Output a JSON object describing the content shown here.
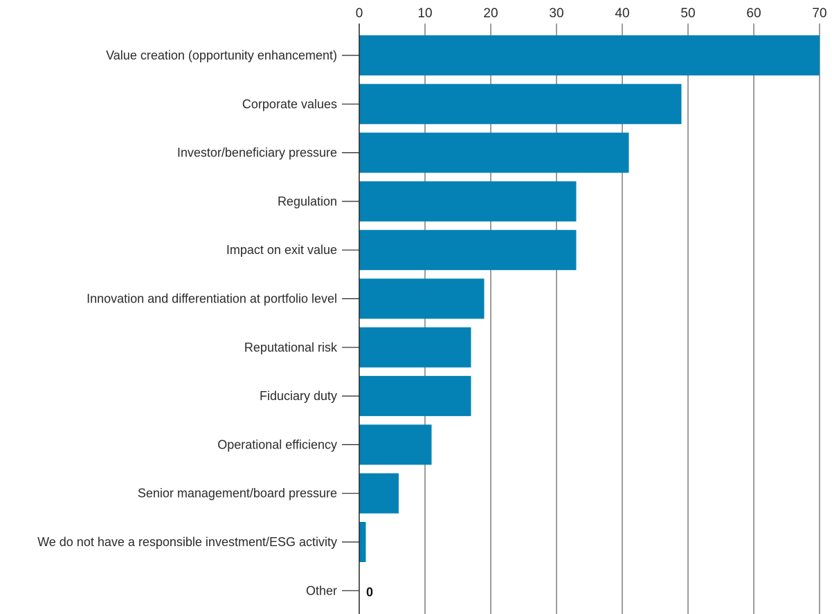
{
  "chart_data": {
    "type": "bar",
    "orientation": "horizontal",
    "title": "",
    "xlabel": "",
    "ylabel": "",
    "xlim": [
      0,
      70
    ],
    "xticks": [
      0,
      10,
      20,
      30,
      40,
      50,
      60,
      70
    ],
    "x_axis_position": "top",
    "grid": true,
    "bar_color": "#0482B5",
    "categories": [
      "Value creation (opportunity enhancement)",
      "Corporate values",
      "Investor/beneficiary pressure",
      "Regulation",
      "Impact on exit value",
      "Innovation and differentiation at portfolio level",
      "Reputational risk",
      "Fiduciary duty",
      "Operational efficiency",
      "Senior management/board pressure",
      "We do not have a responsible investment/ESG activity",
      "Other"
    ],
    "values": [
      70,
      49,
      41,
      33,
      33,
      19,
      17,
      17,
      11,
      6,
      1,
      0
    ],
    "data_labels": [
      {
        "category": "Other",
        "text": "0"
      }
    ]
  }
}
